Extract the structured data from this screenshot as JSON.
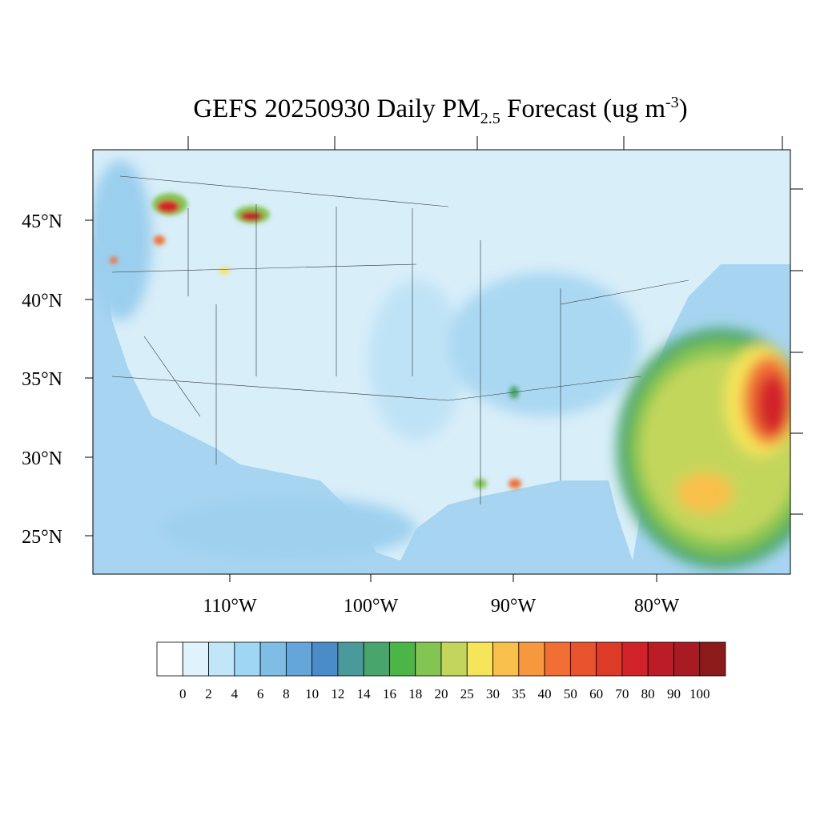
{
  "title": {
    "main": "GEFS 20250930 Daily PM",
    "sub": "2.5",
    "rest": " Forecast (ug m",
    "sup": "-3",
    "end": ")"
  },
  "lat_labels": [
    "45°N",
    "40°N",
    "35°N",
    "30°N",
    "25°N"
  ],
  "lon_labels": [
    "110°W",
    "100°W",
    "90°W",
    "80°W"
  ],
  "colorbar": {
    "colors": [
      "#ffffff",
      "#e0f2fb",
      "#c0e6f8",
      "#9fd6f3",
      "#80bde5",
      "#65a6da",
      "#4a8cc8",
      "#4a9a9b",
      "#48a66d",
      "#4bb548",
      "#84c452",
      "#c3d65b",
      "#f6e45a",
      "#f8bf4a",
      "#f7983e",
      "#f16e34",
      "#e8522c",
      "#dd3a28",
      "#d22229",
      "#bb1c26",
      "#a81b22",
      "#8d1a1b"
    ],
    "labels": [
      "0",
      "2",
      "4",
      "6",
      "8",
      "10",
      "12",
      "14",
      "16",
      "18",
      "20",
      "25",
      "30",
      "35",
      "40",
      "50",
      "60",
      "70",
      "80",
      "90",
      "100"
    ]
  }
}
